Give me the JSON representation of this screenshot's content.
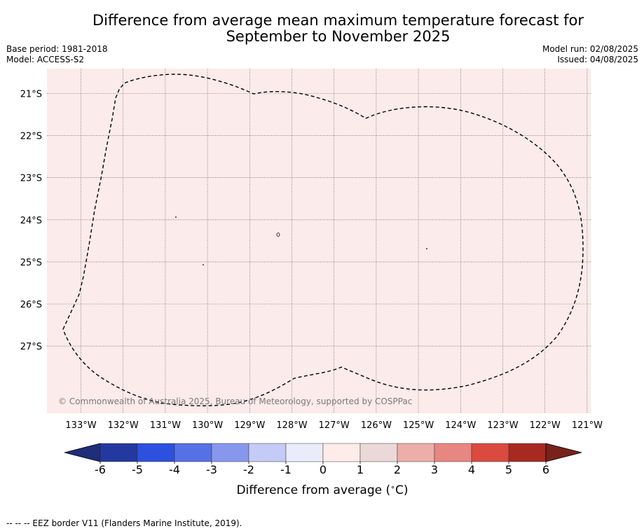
{
  "title": {
    "line1": "Difference from average mean maximum temperature forecast for",
    "line2": "September to November 2025"
  },
  "meta": {
    "base_period": "Base period: 1981-2018",
    "model": "Model: ACCESS-S2",
    "model_run": "Model run: 02/08/2025",
    "issued": "Issued: 04/08/2025"
  },
  "map": {
    "fill_color": "#fbebea",
    "fill_category": "0 to 1",
    "longitude_ticks": [
      "133°W",
      "132°W",
      "131°W",
      "130°W",
      "129°W",
      "128°W",
      "127°W",
      "126°W",
      "125°W",
      "124°W",
      "123°W",
      "122°W",
      "121°W"
    ],
    "latitude_ticks": [
      "21°S",
      "22°S",
      "23°S",
      "24°S",
      "25°S",
      "26°S",
      "27°S"
    ],
    "copyright": "© Commonwealth of Australia 2025, Bureau of Meteorology, supported by COSPPac",
    "gridlines": "dotted"
  },
  "colorbar": {
    "label": "Difference from average ($^\\circ$C)",
    "label_parts": {
      "before": "Difference from average (",
      "degree": "∘",
      "after": "C)"
    },
    "ticks": [
      "-6",
      "-5",
      "-4",
      "-3",
      "-2",
      "-1",
      "0",
      "1",
      "2",
      "3",
      "4",
      "5",
      "6"
    ],
    "colors": [
      "#23399f",
      "#2e50df",
      "#5670e6",
      "#8797ee",
      "#c4cbf7",
      "#eaecfc",
      "#fdecea",
      "#ebd8d8",
      "#ecaea8",
      "#e88681",
      "#da4a3f",
      "#a8291f"
    ],
    "under_color": "#1f2d7a",
    "over_color": "#78221b"
  },
  "footnote": "--  --  -- EEZ border V11 (Flanders Marine Institute, 2019)."
}
